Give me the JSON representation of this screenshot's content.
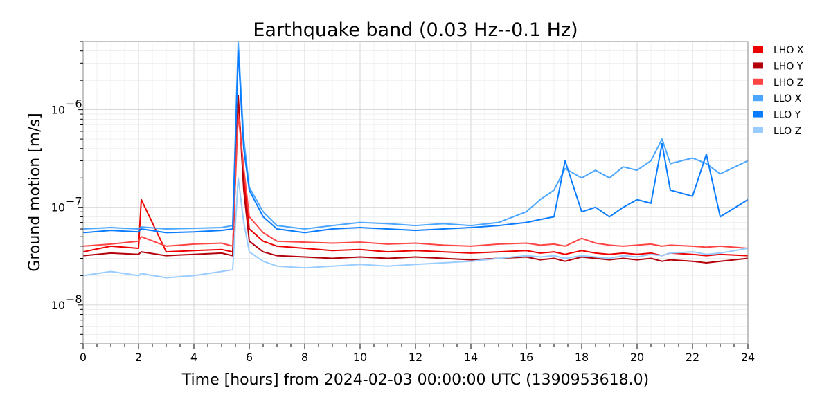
{
  "chart_data": {
    "type": "line",
    "title": "Earthquake band (0.03 Hz--0.1 Hz)",
    "xlabel": "Time [hours] from 2024-02-03 00:00:00 UTC (1390953618.0)",
    "ylabel": "Ground motion [m/s]",
    "xlim": [
      0,
      24
    ],
    "ylim": [
      4e-09,
      5e-06
    ],
    "yscale": "log",
    "grid": true,
    "legend_position": "right",
    "x_ticks": [
      0,
      2,
      4,
      6,
      8,
      10,
      12,
      14,
      16,
      18,
      20,
      22,
      24
    ],
    "y_ticks": [
      {
        "value": 1e-08,
        "label": "10",
        "exp": "−8"
      },
      {
        "value": 1e-07,
        "label": "10",
        "exp": "−7"
      },
      {
        "value": 1e-06,
        "label": "10",
        "exp": "−6"
      }
    ],
    "x": [
      0,
      1,
      2,
      2.1,
      3,
      4,
      5,
      5.4,
      5.6,
      5.8,
      6,
      6.5,
      7,
      8,
      9,
      10,
      11,
      12,
      13,
      14,
      15,
      16,
      16.5,
      17,
      17.4,
      18,
      18.5,
      19,
      19.5,
      20,
      20.5,
      20.9,
      21.2,
      22,
      22.5,
      23,
      24
    ],
    "series": [
      {
        "name": "LHO X",
        "color": "#ee0000",
        "values": [
          3.5e-08,
          4e-08,
          3.8e-08,
          1.2e-07,
          3.5e-08,
          3.6e-08,
          3.7e-08,
          3.5e-08,
          1.2e-06,
          2e-07,
          6e-08,
          4.5e-08,
          4e-08,
          3.8e-08,
          3.6e-08,
          3.7e-08,
          3.5e-08,
          3.6e-08,
          3.5e-08,
          3.4e-08,
          3.5e-08,
          3.6e-08,
          3.4e-08,
          3.5e-08,
          3.3e-08,
          3.6e-08,
          3.4e-08,
          3.3e-08,
          3.4e-08,
          3.3e-08,
          3.4e-08,
          3.2e-08,
          3.4e-08,
          3.3e-08,
          3.2e-08,
          3.3e-08,
          3.2e-08
        ]
      },
      {
        "name": "LHO Y",
        "color": "#b3000a",
        "values": [
          3.2e-08,
          3.4e-08,
          3.3e-08,
          3.5e-08,
          3.2e-08,
          3.3e-08,
          3.4e-08,
          3.2e-08,
          1.4e-06,
          1.5e-07,
          4.5e-08,
          3.5e-08,
          3.2e-08,
          3.1e-08,
          3e-08,
          3.1e-08,
          3e-08,
          3.1e-08,
          3e-08,
          2.9e-08,
          3e-08,
          3.1e-08,
          2.9e-08,
          3e-08,
          2.8e-08,
          3.1e-08,
          3e-08,
          2.9e-08,
          3e-08,
          2.9e-08,
          3e-08,
          2.8e-08,
          2.9e-08,
          2.8e-08,
          2.7e-08,
          2.8e-08,
          3e-08
        ]
      },
      {
        "name": "LHO Z",
        "color": "#ff4444",
        "values": [
          4e-08,
          4.2e-08,
          4.5e-08,
          5e-08,
          4e-08,
          4.2e-08,
          4.3e-08,
          4e-08,
          9e-07,
          2.5e-07,
          8e-08,
          5.5e-08,
          4.5e-08,
          4.4e-08,
          4.3e-08,
          4.4e-08,
          4.2e-08,
          4.3e-08,
          4.1e-08,
          4e-08,
          4.2e-08,
          4.3e-08,
          4.1e-08,
          4.2e-08,
          4e-08,
          4.8e-08,
          4.3e-08,
          4.1e-08,
          4e-08,
          4.1e-08,
          4.2e-08,
          4e-08,
          4.1e-08,
          4e-08,
          3.9e-08,
          4e-08,
          3.8e-08
        ]
      },
      {
        "name": "LLO X",
        "color": "#4ba6ff",
        "values": [
          6e-08,
          6.2e-08,
          6e-08,
          6.3e-08,
          6e-08,
          6.1e-08,
          6.2e-08,
          6.5e-08,
          5e-06,
          5e-07,
          1.6e-07,
          9e-08,
          6.5e-08,
          6e-08,
          6.5e-08,
          7e-08,
          6.8e-08,
          6.5e-08,
          6.8e-08,
          6.5e-08,
          7e-08,
          9e-08,
          1.2e-07,
          1.5e-07,
          2.5e-07,
          2e-07,
          2.4e-07,
          2e-07,
          2.6e-07,
          2.4e-07,
          3e-07,
          5e-07,
          2.8e-07,
          3.2e-07,
          2.8e-07,
          2.2e-07,
          3e-07
        ]
      },
      {
        "name": "LLO Y",
        "color": "#0a7cff",
        "values": [
          5.5e-08,
          5.8e-08,
          5.6e-08,
          6e-08,
          5.5e-08,
          5.6e-08,
          5.8e-08,
          6e-08,
          4e-06,
          4e-07,
          1.5e-07,
          8e-08,
          6e-08,
          5.5e-08,
          6e-08,
          6.2e-08,
          6e-08,
          5.8e-08,
          6e-08,
          6.2e-08,
          6.5e-08,
          7e-08,
          7.5e-08,
          8e-08,
          3e-07,
          9e-08,
          1e-07,
          8e-08,
          1e-07,
          1.2e-07,
          1.1e-07,
          4.5e-07,
          1.5e-07,
          1.3e-07,
          3.5e-07,
          8e-08,
          1.2e-07
        ]
      },
      {
        "name": "LLO Z",
        "color": "#99ccff",
        "values": [
          2e-08,
          2.2e-08,
          2e-08,
          2.1e-08,
          1.9e-08,
          2e-08,
          2.2e-08,
          2.3e-08,
          2e-07,
          7e-08,
          3.5e-08,
          2.8e-08,
          2.5e-08,
          2.4e-08,
          2.5e-08,
          2.6e-08,
          2.5e-08,
          2.6e-08,
          2.7e-08,
          2.8e-08,
          3e-08,
          3.2e-08,
          3.1e-08,
          3.2e-08,
          3e-08,
          3.2e-08,
          3.1e-08,
          3e-08,
          3.2e-08,
          3.1e-08,
          3.3e-08,
          3.2e-08,
          3.4e-08,
          3.5e-08,
          3.3e-08,
          3.4e-08,
          3.8e-08
        ]
      }
    ]
  }
}
